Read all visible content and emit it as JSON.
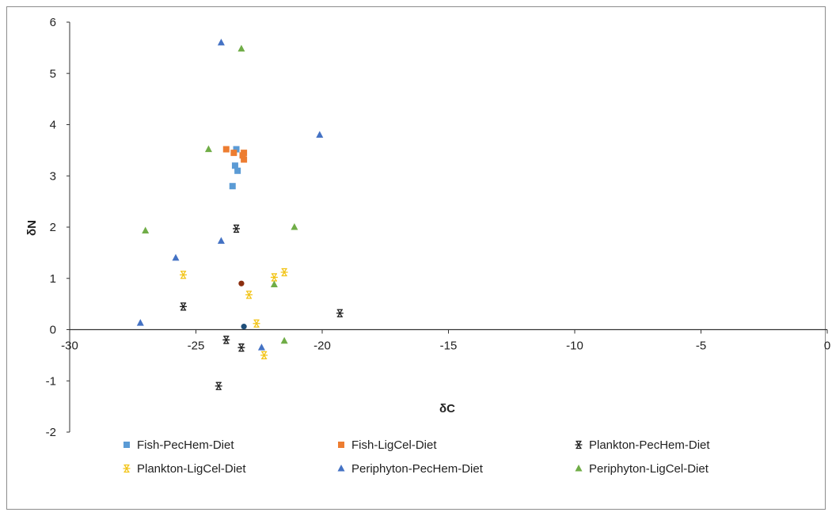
{
  "chart_data": {
    "type": "scatter",
    "title": "",
    "xlabel": "δC",
    "ylabel": "δN",
    "xlim": [
      -30,
      0
    ],
    "ylim": [
      -2,
      6
    ],
    "x_ticks": [
      -30,
      -25,
      -20,
      -15,
      -10,
      -5,
      0
    ],
    "y_ticks": [
      -2,
      -1,
      0,
      1,
      2,
      3,
      4,
      5,
      6
    ],
    "grid": false,
    "legend_position": "bottom",
    "series": [
      {
        "name": "Fish-PecHem-Diet",
        "marker": "square",
        "color": "#5b9bd5",
        "points": [
          [
            -23.4,
            3.52
          ],
          [
            -23.45,
            3.2
          ],
          [
            -23.35,
            3.1
          ],
          [
            -23.55,
            2.8
          ]
        ]
      },
      {
        "name": "Fish-LigCel-Diet",
        "marker": "square",
        "color": "#ed7d31",
        "points": [
          [
            -23.8,
            3.52
          ],
          [
            -23.5,
            3.45
          ],
          [
            -23.1,
            3.45
          ],
          [
            -23.1,
            3.32
          ],
          [
            -23.15,
            3.4
          ]
        ]
      },
      {
        "name": "Plankton-PecHem-Diet",
        "marker": "asterisk",
        "color": "#1f1f1f",
        "points": [
          [
            -23.4,
            1.97
          ],
          [
            -25.5,
            0.45
          ],
          [
            -19.3,
            0.32
          ],
          [
            -23.8,
            -0.2
          ],
          [
            -23.2,
            -0.35
          ],
          [
            -24.1,
            -1.1
          ]
        ]
      },
      {
        "name": "Plankton-LigCel-Diet",
        "marker": "asterisk",
        "color": "#f2c417",
        "points": [
          [
            -25.5,
            1.07
          ],
          [
            -21.5,
            1.12
          ],
          [
            -21.9,
            1.02
          ],
          [
            -22.9,
            0.68
          ],
          [
            -22.6,
            0.12
          ],
          [
            -22.3,
            -0.5
          ]
        ]
      },
      {
        "name": "Periphyton-PecHem-Diet",
        "marker": "triangle",
        "color": "#4472c4",
        "points": [
          [
            -24.0,
            5.6
          ],
          [
            -20.1,
            3.8
          ],
          [
            -24.0,
            1.73
          ],
          [
            -25.8,
            1.4
          ],
          [
            -27.2,
            0.13
          ],
          [
            -22.4,
            -0.35
          ]
        ]
      },
      {
        "name": "Periphyton-LigCel-Diet",
        "marker": "triangle",
        "color": "#70ad47",
        "points": [
          [
            -23.2,
            5.48
          ],
          [
            -24.5,
            3.52
          ],
          [
            -27.0,
            1.93
          ],
          [
            -21.1,
            2.0
          ],
          [
            -21.9,
            0.88
          ],
          [
            -21.5,
            -0.22
          ]
        ]
      },
      {
        "name": "",
        "marker": "circle",
        "color": "#8b2e0f",
        "points": [
          [
            -23.2,
            0.9
          ]
        ]
      },
      {
        "name": "",
        "marker": "circle",
        "color": "#1f4e79",
        "points": [
          [
            -23.1,
            0.06
          ]
        ]
      }
    ]
  }
}
